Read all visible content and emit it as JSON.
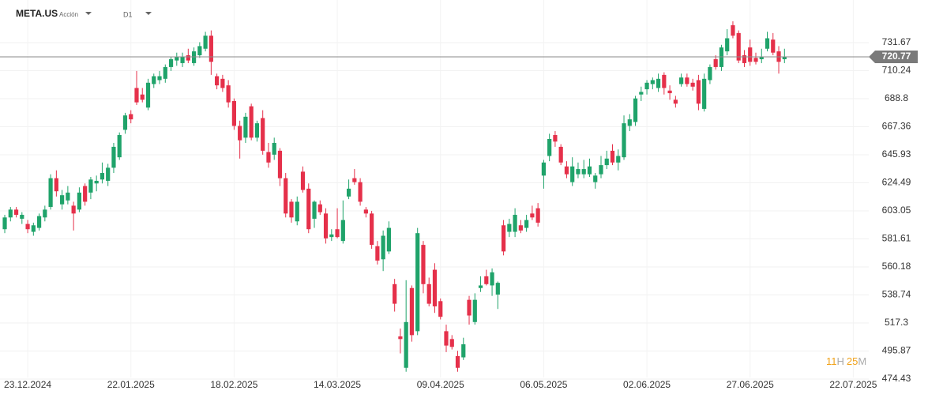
{
  "chart_data": {
    "type": "candlestick",
    "title": "META.US",
    "subtitle": "Acción",
    "timeframe": "D1",
    "up_color": "#1fa36a",
    "down_color": "#e5304a",
    "grid": true,
    "open": [
      589,
      598,
      604,
      597,
      593,
      587,
      590,
      598,
      606,
      628,
      608,
      611,
      607,
      604,
      622,
      617,
      624,
      627,
      626,
      636,
      644,
      665,
      677,
      697,
      692,
      682,
      700,
      703,
      704,
      713,
      718,
      716,
      722,
      716,
      722,
      727,
      737,
      706,
      704,
      699,
      687,
      668,
      659,
      683,
      659,
      674,
      648,
      646,
      649,
      628,
      610,
      595,
      633,
      620,
      597,
      608,
      601,
      583,
      589,
      580,
      614,
      628,
      625,
      604,
      601,
      576,
      566,
      572,
      547,
      507,
      483,
      544,
      511,
      577,
      547,
      558,
      534,
      511,
      505,
      492,
      491,
      535,
      518,
      544,
      553,
      546,
      539,
      592,
      587,
      587,
      592,
      590,
      601,
      605,
      630,
      645,
      661,
      652,
      637,
      625,
      631,
      631,
      631,
      625,
      631,
      638,
      649,
      640,
      644,
      668,
      671,
      692,
      696,
      700,
      697,
      707,
      695,
      688,
      700,
      705,
      701,
      703,
      681,
      703,
      719,
      713,
      725,
      745,
      739,
      722,
      728,
      720,
      719,
      727,
      734,
      725,
      719
    ],
    "high": [
      600,
      606,
      606,
      602,
      596,
      594,
      601,
      607,
      631,
      634,
      619,
      622,
      610,
      621,
      624,
      629,
      630,
      640,
      639,
      655,
      663,
      678,
      680,
      710,
      697,
      704,
      708,
      710,
      715,
      721,
      724,
      724,
      727,
      728,
      732,
      740,
      741,
      708,
      707,
      703,
      689,
      672,
      678,
      685,
      672,
      680,
      655,
      659,
      651,
      632,
      612,
      614,
      637,
      624,
      611,
      611,
      605,
      589,
      605,
      611,
      627,
      635,
      628,
      606,
      603,
      580,
      588,
      595,
      551,
      513,
      550,
      546,
      590,
      580,
      552,
      563,
      536,
      516,
      508,
      496,
      506,
      538,
      540,
      553,
      558,
      559,
      549,
      596,
      597,
      605,
      596,
      600,
      607,
      609,
      642,
      662,
      664,
      654,
      641,
      644,
      640,
      642,
      643,
      632,
      645,
      649,
      654,
      650,
      676,
      677,
      691,
      698,
      703,
      705,
      708,
      709,
      699,
      691,
      708,
      708,
      704,
      707,
      708,
      715,
      722,
      730,
      742,
      748,
      741,
      726,
      734,
      724,
      727,
      740,
      739,
      729,
      727
    ],
    "low": [
      586,
      595,
      598,
      593,
      586,
      584,
      588,
      595,
      604,
      614,
      604,
      608,
      588,
      602,
      607,
      612,
      618,
      624,
      622,
      632,
      642,
      662,
      670,
      684,
      686,
      680,
      697,
      700,
      701,
      710,
      714,
      713,
      716,
      714,
      720,
      725,
      707,
      696,
      694,
      682,
      665,
      643,
      655,
      657,
      656,
      646,
      636,
      642,
      622,
      598,
      594,
      592,
      617,
      586,
      590,
      600,
      578,
      580,
      582,
      578,
      612,
      623,
      607,
      598,
      574,
      562,
      557,
      570,
      526,
      494,
      480,
      503,
      508,
      540,
      530,
      525,
      520,
      495,
      497,
      480,
      489,
      516,
      516,
      541,
      546,
      538,
      528,
      569,
      583,
      583,
      586,
      587,
      596,
      591,
      620,
      641,
      652,
      638,
      628,
      622,
      628,
      628,
      629,
      620,
      628,
      635,
      638,
      634,
      642,
      664,
      668,
      687,
      692,
      696,
      694,
      692,
      688,
      682,
      698,
      698,
      695,
      680,
      679,
      700,
      711,
      710,
      722,
      735,
      716,
      713,
      714,
      715,
      716,
      725,
      722,
      708,
      716
    ],
    "close": [
      598,
      604,
      600,
      600,
      589,
      592,
      599,
      604,
      628,
      618,
      615,
      617,
      601,
      617,
      610,
      627,
      626,
      632,
      636,
      652,
      661,
      676,
      673,
      686,
      688,
      701,
      706,
      706,
      713,
      719,
      721,
      721,
      718,
      725,
      729,
      737,
      717,
      699,
      697,
      686,
      668,
      657,
      675,
      659,
      670,
      649,
      640,
      655,
      628,
      601,
      598,
      610,
      619,
      589,
      610,
      602,
      582,
      585,
      583,
      596,
      620,
      625,
      610,
      601,
      577,
      565,
      584,
      590,
      532,
      505,
      518,
      508,
      586,
      547,
      532,
      530,
      522,
      500,
      499,
      483,
      501,
      523,
      535,
      546,
      547,
      556,
      548,
      572,
      593,
      600,
      588,
      596,
      598,
      594,
      640,
      658,
      656,
      640,
      631,
      637,
      635,
      635,
      637,
      630,
      638,
      643,
      640,
      645,
      670,
      673,
      689,
      694,
      701,
      703,
      704,
      697,
      693,
      685,
      705,
      700,
      698,
      685,
      704,
      713,
      713,
      728,
      735,
      737,
      718,
      716,
      717,
      717,
      721,
      735,
      724,
      717,
      721
    ],
    "xlim": [
      -0.83,
      150.7
    ],
    "xticks": [
      {
        "value": 4,
        "label": "23.12.2024"
      },
      {
        "value": 22,
        "label": "22.01.2025"
      },
      {
        "value": 40,
        "label": "18.02.2025"
      },
      {
        "value": 58,
        "label": "14.03.2025"
      },
      {
        "value": 76,
        "label": "09.04.2025"
      },
      {
        "value": 94,
        "label": "06.05.2025"
      },
      {
        "value": 112,
        "label": "02.06.2025"
      },
      {
        "value": 130,
        "label": "27.06.2025"
      },
      {
        "value": 148,
        "label": "22.07.2025"
      }
    ],
    "ylim": [
      468.36,
      758.24
    ],
    "yticks": [
      474.43,
      495.87,
      517.3,
      538.74,
      560.18,
      581.61,
      603.05,
      624.49,
      645.93,
      667.36,
      688.8,
      710.24,
      731.67
    ],
    "last_price": 720.77,
    "countdown": {
      "hours": "11",
      "hours_unit": "H",
      "minutes": "25",
      "minutes_unit": "M"
    }
  }
}
